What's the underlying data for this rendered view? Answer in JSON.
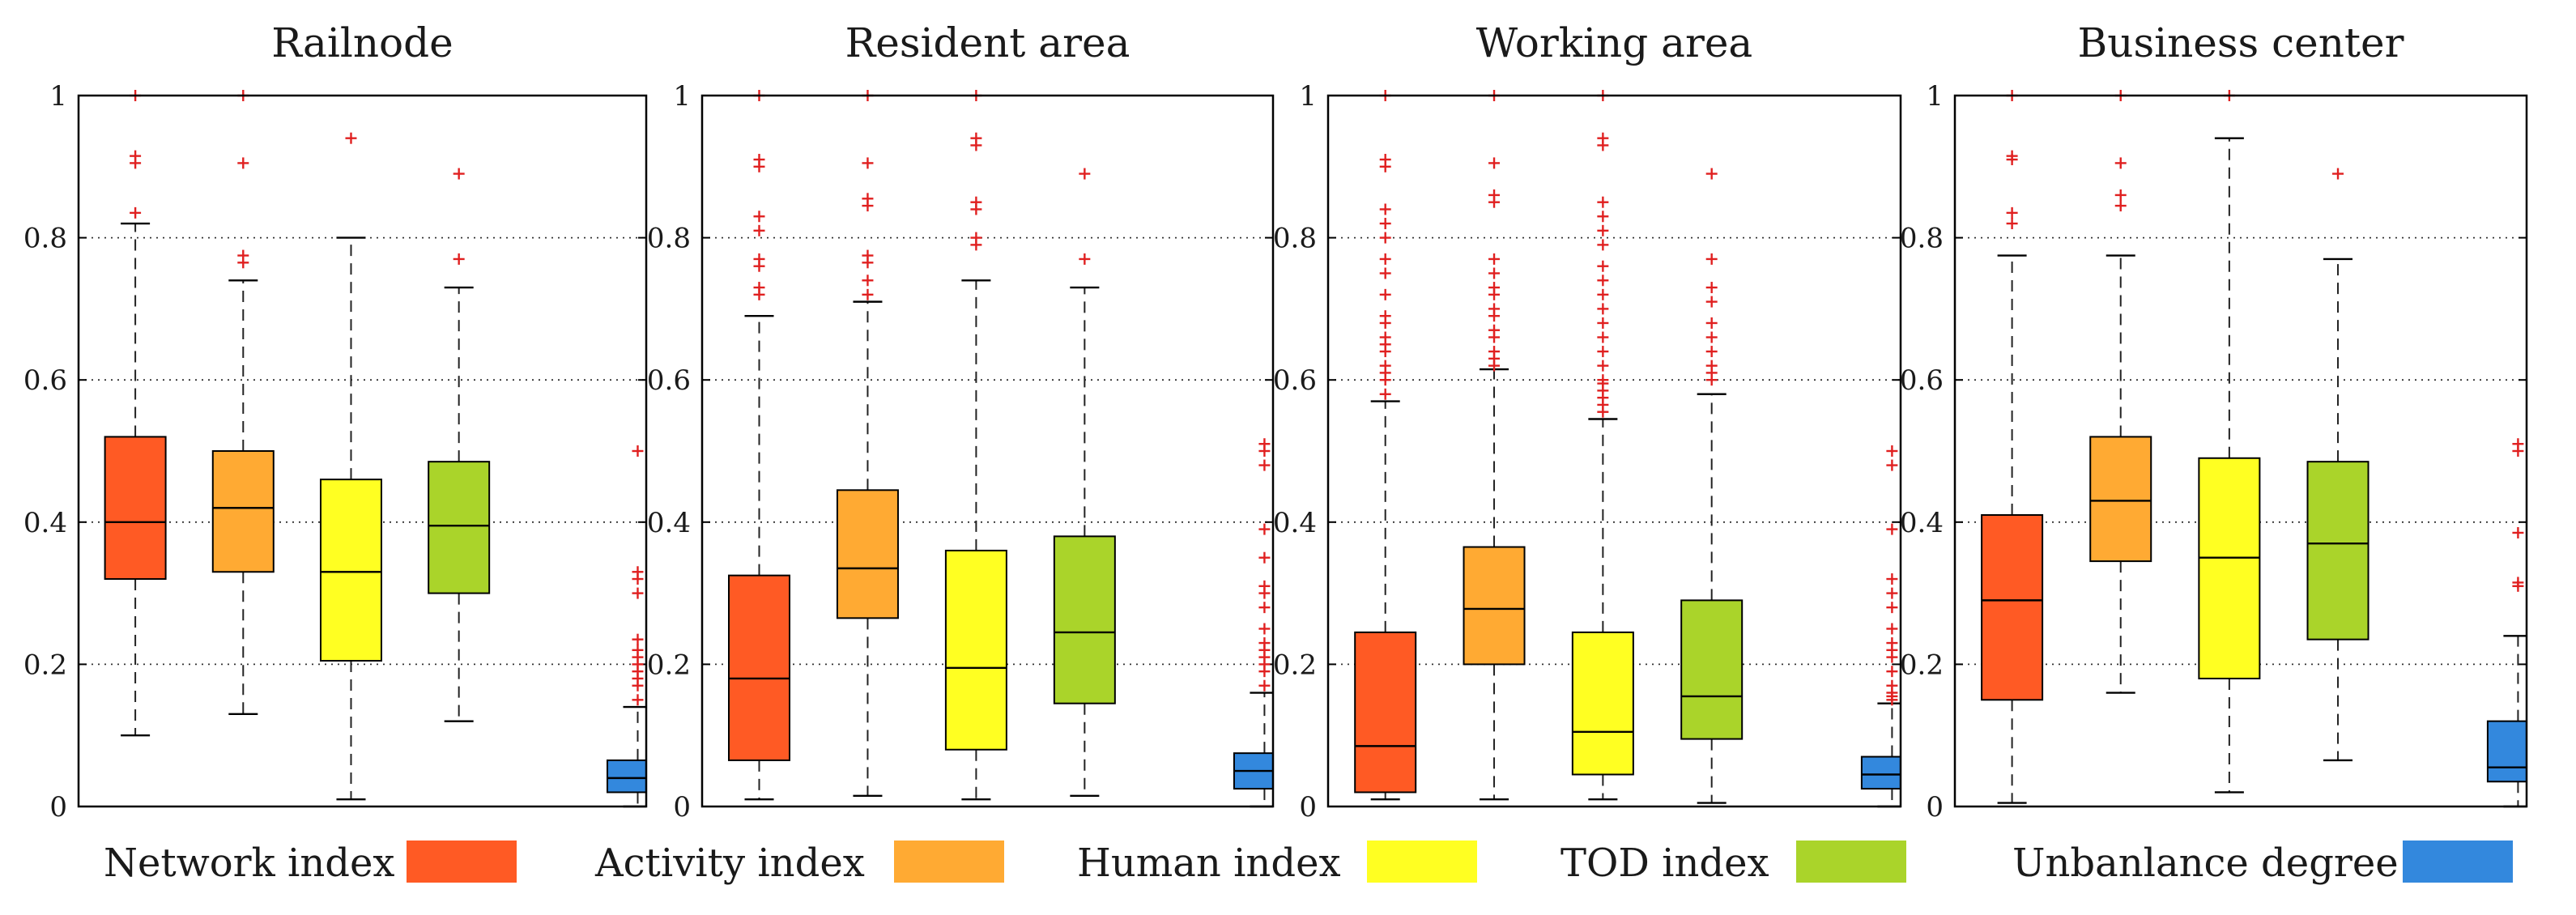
{
  "colors": {
    "network": "#ff5a24",
    "activity": "#ffaa33",
    "human": "#ffff22",
    "tod": "#aad42a",
    "unbalance": "#3388dd",
    "outlier": "#e02020"
  },
  "legend": [
    {
      "label": "Network index",
      "color_key": "network"
    },
    {
      "label": "Activity index",
      "color_key": "activity"
    },
    {
      "label": "Human index",
      "color_key": "human"
    },
    {
      "label": "TOD index",
      "color_key": "tod"
    },
    {
      "label": "Unbanlance degree",
      "color_key": "unbalance"
    }
  ],
  "chart_data": [
    {
      "type": "box",
      "title": "Railnode",
      "ylim": [
        0,
        1
      ],
      "yticks": [
        "0",
        "0.2",
        "0.4",
        "0.6",
        "0.8",
        "1"
      ],
      "ytick_values": [
        0,
        0.2,
        0.4,
        0.6,
        0.8,
        1
      ],
      "grid": true,
      "series": [
        {
          "color_key": "network",
          "whisker_low": 0.1,
          "q1": 0.32,
          "median": 0.4,
          "q3": 0.52,
          "whisker_high": 0.82,
          "outliers": [
            0.835,
            0.905,
            0.915,
            1.0
          ]
        },
        {
          "color_key": "activity",
          "whisker_low": 0.13,
          "q1": 0.33,
          "median": 0.42,
          "q3": 0.5,
          "whisker_high": 0.74,
          "outliers": [
            0.765,
            0.775,
            0.905,
            1.0
          ]
        },
        {
          "color_key": "human",
          "whisker_low": 0.01,
          "q1": 0.205,
          "median": 0.33,
          "q3": 0.46,
          "whisker_high": 0.8,
          "outliers": [
            0.94
          ]
        },
        {
          "color_key": "tod",
          "whisker_low": 0.12,
          "q1": 0.3,
          "median": 0.395,
          "q3": 0.485,
          "whisker_high": 0.73,
          "outliers": [
            0.77,
            0.89
          ]
        },
        {
          "color_key": "unbalance",
          "whisker_low": 0.0,
          "q1": 0.02,
          "median": 0.04,
          "q3": 0.065,
          "whisker_high": 0.14,
          "outliers": [
            0.15,
            0.17,
            0.18,
            0.19,
            0.2,
            0.21,
            0.22,
            0.235,
            0.3,
            0.32,
            0.33,
            0.5
          ]
        }
      ]
    },
    {
      "type": "box",
      "title": "Resident area",
      "ylim": [
        0,
        1
      ],
      "yticks": [
        "0",
        "0.2",
        "0.4",
        "0.6",
        "0.8",
        "1"
      ],
      "ytick_values": [
        0,
        0.2,
        0.4,
        0.6,
        0.8,
        1
      ],
      "grid": true,
      "series": [
        {
          "color_key": "network",
          "whisker_low": 0.01,
          "q1": 0.065,
          "median": 0.18,
          "q3": 0.325,
          "whisker_high": 0.69,
          "outliers": [
            0.72,
            0.73,
            0.76,
            0.77,
            0.81,
            0.83,
            0.9,
            0.91,
            1.0
          ]
        },
        {
          "color_key": "activity",
          "whisker_low": 0.015,
          "q1": 0.265,
          "median": 0.335,
          "q3": 0.445,
          "whisker_high": 0.71,
          "outliers": [
            0.72,
            0.74,
            0.765,
            0.775,
            0.845,
            0.855,
            0.905,
            1.0
          ]
        },
        {
          "color_key": "human",
          "whisker_low": 0.01,
          "q1": 0.08,
          "median": 0.195,
          "q3": 0.36,
          "whisker_high": 0.74,
          "outliers": [
            0.79,
            0.8,
            0.84,
            0.85,
            0.93,
            0.94,
            1.0
          ]
        },
        {
          "color_key": "tod",
          "whisker_low": 0.015,
          "q1": 0.145,
          "median": 0.245,
          "q3": 0.38,
          "whisker_high": 0.73,
          "outliers": [
            0.77,
            0.89
          ]
        },
        {
          "color_key": "unbalance",
          "whisker_low": 0.0,
          "q1": 0.025,
          "median": 0.05,
          "q3": 0.075,
          "whisker_high": 0.16,
          "outliers": [
            0.17,
            0.19,
            0.2,
            0.21,
            0.22,
            0.23,
            0.25,
            0.28,
            0.3,
            0.31,
            0.35,
            0.39,
            0.48,
            0.5,
            0.51
          ]
        }
      ]
    },
    {
      "type": "box",
      "title": "Working area",
      "ylim": [
        0,
        1
      ],
      "yticks": [
        "0",
        "0.2",
        "0.4",
        "0.6",
        "0.8",
        "1"
      ],
      "ytick_values": [
        0,
        0.2,
        0.4,
        0.6,
        0.8,
        1
      ],
      "grid": true,
      "series": [
        {
          "color_key": "network",
          "whisker_low": 0.01,
          "q1": 0.02,
          "median": 0.085,
          "q3": 0.245,
          "whisker_high": 0.57,
          "outliers": [
            0.58,
            0.6,
            0.61,
            0.62,
            0.64,
            0.65,
            0.66,
            0.68,
            0.69,
            0.72,
            0.75,
            0.77,
            0.8,
            0.82,
            0.84,
            0.9,
            0.91,
            1.0
          ]
        },
        {
          "color_key": "activity",
          "whisker_low": 0.01,
          "q1": 0.2,
          "median": 0.278,
          "q3": 0.365,
          "whisker_high": 0.615,
          "outliers": [
            0.62,
            0.63,
            0.64,
            0.66,
            0.67,
            0.69,
            0.7,
            0.72,
            0.73,
            0.75,
            0.77,
            0.85,
            0.86,
            0.905,
            1.0
          ]
        },
        {
          "color_key": "human",
          "whisker_low": 0.01,
          "q1": 0.045,
          "median": 0.105,
          "q3": 0.245,
          "whisker_high": 0.545,
          "outliers": [
            0.555,
            0.565,
            0.575,
            0.585,
            0.595,
            0.6,
            0.62,
            0.64,
            0.66,
            0.68,
            0.7,
            0.72,
            0.74,
            0.76,
            0.79,
            0.81,
            0.83,
            0.85,
            0.93,
            0.94,
            1.0
          ]
        },
        {
          "color_key": "tod",
          "whisker_low": 0.005,
          "q1": 0.095,
          "median": 0.155,
          "q3": 0.29,
          "whisker_high": 0.58,
          "outliers": [
            0.6,
            0.61,
            0.62,
            0.64,
            0.66,
            0.68,
            0.71,
            0.73,
            0.77,
            0.89
          ]
        },
        {
          "color_key": "unbalance",
          "whisker_low": 0.0,
          "q1": 0.025,
          "median": 0.045,
          "q3": 0.07,
          "whisker_high": 0.145,
          "outliers": [
            0.15,
            0.155,
            0.16,
            0.17,
            0.19,
            0.21,
            0.22,
            0.23,
            0.25,
            0.28,
            0.3,
            0.32,
            0.39,
            0.48,
            0.5
          ]
        }
      ]
    },
    {
      "type": "box",
      "title": "Business center",
      "ylim": [
        0,
        1
      ],
      "yticks": [
        "0",
        "0.2",
        "0.4",
        "0.6",
        "0.8",
        "1"
      ],
      "ytick_values": [
        0,
        0.2,
        0.4,
        0.6,
        0.8,
        1
      ],
      "grid": true,
      "series": [
        {
          "color_key": "network",
          "whisker_low": 0.005,
          "q1": 0.15,
          "median": 0.29,
          "q3": 0.41,
          "whisker_high": 0.775,
          "outliers": [
            0.82,
            0.835,
            0.91,
            0.915,
            1.0
          ]
        },
        {
          "color_key": "activity",
          "whisker_low": 0.16,
          "q1": 0.345,
          "median": 0.43,
          "q3": 0.52,
          "whisker_high": 0.775,
          "outliers": [
            0.845,
            0.86,
            0.905,
            1.0
          ]
        },
        {
          "color_key": "human",
          "whisker_low": 0.02,
          "q1": 0.18,
          "median": 0.35,
          "q3": 0.49,
          "whisker_high": 0.94,
          "outliers": [
            1.0
          ]
        },
        {
          "color_key": "tod",
          "whisker_low": 0.065,
          "q1": 0.235,
          "median": 0.37,
          "q3": 0.485,
          "whisker_high": 0.77,
          "outliers": [
            0.89
          ]
        },
        {
          "color_key": "unbalance",
          "whisker_low": 0.0,
          "q1": 0.035,
          "median": 0.055,
          "q3": 0.12,
          "whisker_high": 0.24,
          "outliers": [
            0.31,
            0.315,
            0.385,
            0.5,
            0.51
          ]
        }
      ]
    }
  ]
}
